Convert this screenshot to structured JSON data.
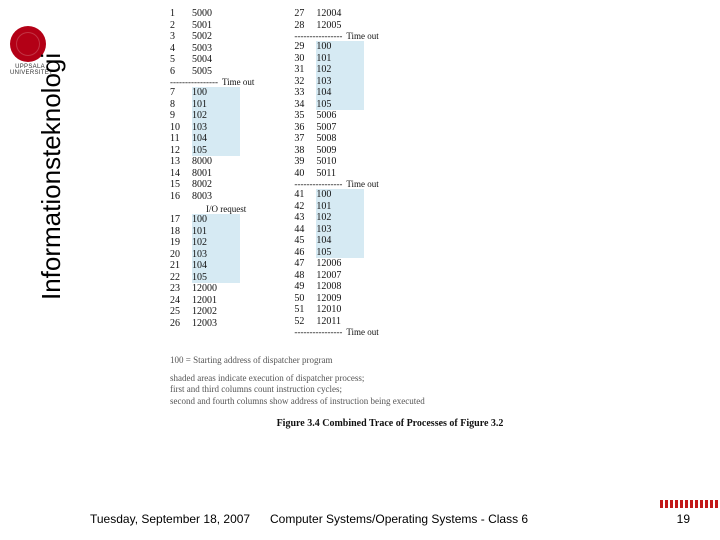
{
  "logo_text": "UPPSALA UNIVERSITET",
  "side_label": "Informationsteknologi",
  "col_left": {
    "blocks": [
      {
        "rows": [
          {
            "n": "1",
            "a": "5000",
            "hl": false
          },
          {
            "n": "2",
            "a": "5001",
            "hl": false
          },
          {
            "n": "3",
            "a": "5002",
            "hl": false
          },
          {
            "n": "4",
            "a": "5003",
            "hl": false
          },
          {
            "n": "5",
            "a": "5004",
            "hl": false
          },
          {
            "n": "6",
            "a": "5005",
            "hl": false
          }
        ],
        "sep": "Time out"
      },
      {
        "rows": [
          {
            "n": "7",
            "a": "100",
            "hl": true
          },
          {
            "n": "8",
            "a": "101",
            "hl": true
          },
          {
            "n": "9",
            "a": "102",
            "hl": true
          },
          {
            "n": "10",
            "a": "103",
            "hl": true
          },
          {
            "n": "11",
            "a": "104",
            "hl": true
          },
          {
            "n": "12",
            "a": "105",
            "hl": true
          },
          {
            "n": "13",
            "a": "8000",
            "hl": false
          },
          {
            "n": "14",
            "a": "8001",
            "hl": false
          },
          {
            "n": "15",
            "a": "8002",
            "hl": false
          },
          {
            "n": "16",
            "a": "8003",
            "hl": false
          }
        ],
        "io": "I/O request"
      },
      {
        "rows": [
          {
            "n": "17",
            "a": "100",
            "hl": true
          },
          {
            "n": "18",
            "a": "101",
            "hl": true
          },
          {
            "n": "19",
            "a": "102",
            "hl": true
          },
          {
            "n": "20",
            "a": "103",
            "hl": true
          },
          {
            "n": "21",
            "a": "104",
            "hl": true
          },
          {
            "n": "22",
            "a": "105",
            "hl": true
          },
          {
            "n": "23",
            "a": "12000",
            "hl": false
          },
          {
            "n": "24",
            "a": "12001",
            "hl": false
          },
          {
            "n": "25",
            "a": "12002",
            "hl": false
          },
          {
            "n": "26",
            "a": "12003",
            "hl": false
          }
        ]
      }
    ]
  },
  "col_right": {
    "blocks": [
      {
        "rows": [
          {
            "n": "27",
            "a": "12004",
            "hl": false
          },
          {
            "n": "28",
            "a": "12005",
            "hl": false
          }
        ],
        "sep": "Time out"
      },
      {
        "rows": [
          {
            "n": "29",
            "a": "100",
            "hl": true
          },
          {
            "n": "30",
            "a": "101",
            "hl": true
          },
          {
            "n": "31",
            "a": "102",
            "hl": true
          },
          {
            "n": "32",
            "a": "103",
            "hl": true
          },
          {
            "n": "33",
            "a": "104",
            "hl": true
          },
          {
            "n": "34",
            "a": "105",
            "hl": true
          },
          {
            "n": "35",
            "a": "5006",
            "hl": false
          },
          {
            "n": "36",
            "a": "5007",
            "hl": false
          },
          {
            "n": "37",
            "a": "5008",
            "hl": false
          },
          {
            "n": "38",
            "a": "5009",
            "hl": false
          },
          {
            "n": "39",
            "a": "5010",
            "hl": false
          },
          {
            "n": "40",
            "a": "5011",
            "hl": false
          }
        ],
        "sep": "Time out"
      },
      {
        "rows": [
          {
            "n": "41",
            "a": "100",
            "hl": true
          },
          {
            "n": "42",
            "a": "101",
            "hl": true
          },
          {
            "n": "43",
            "a": "102",
            "hl": true
          },
          {
            "n": "44",
            "a": "103",
            "hl": true
          },
          {
            "n": "45",
            "a": "104",
            "hl": true
          },
          {
            "n": "46",
            "a": "105",
            "hl": true
          },
          {
            "n": "47",
            "a": "12006",
            "hl": false
          },
          {
            "n": "48",
            "a": "12007",
            "hl": false
          },
          {
            "n": "49",
            "a": "12008",
            "hl": false
          },
          {
            "n": "50",
            "a": "12009",
            "hl": false
          },
          {
            "n": "51",
            "a": "12010",
            "hl": false
          },
          {
            "n": "52",
            "a": "12011",
            "hl": false
          }
        ],
        "sep": "Time out"
      }
    ]
  },
  "notes": {
    "l1": "100 = Starting address of dispatcher program",
    "l2": "shaded areas indicate execution of dispatcher process;",
    "l3": "first and third columns count instruction cycles;",
    "l4": "second and fourth columns show address of instruction being executed"
  },
  "caption": "Figure 3.4   Combined Trace of Processes of Figure 3.2",
  "footer": {
    "date": "Tuesday, September 18, 2007",
    "title": "Computer Systems/Operating Systems - Class 6",
    "page": "19"
  },
  "dash_text": "----------------",
  "colors": {
    "highlight": "#d6eaf3",
    "logo": "#b30016"
  }
}
